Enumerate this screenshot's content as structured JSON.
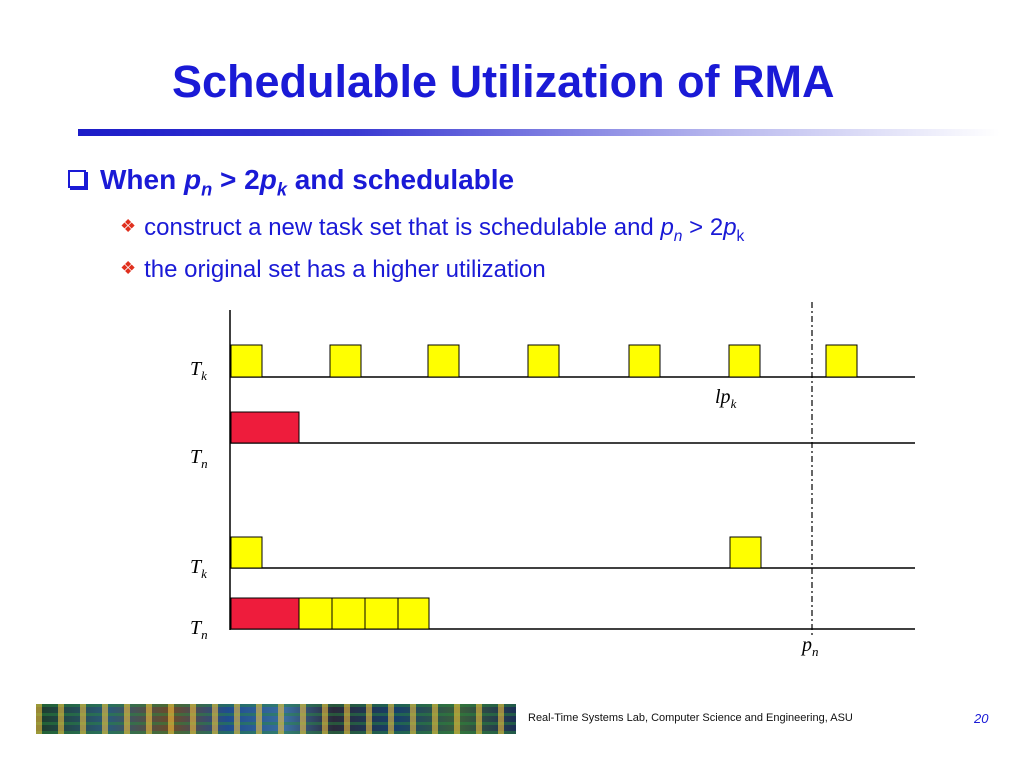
{
  "slide": {
    "title": "Schedulable Utilization of RMA",
    "bullet1": {
      "prefix": "When ",
      "p": "p",
      "n": "n",
      "mid": " > 2",
      "p2": "p",
      "k": "k",
      "suffix": "  and schedulable"
    },
    "sub_bullets": [
      {
        "text": "construct a new task set that is schedulable and ",
        "p": "p",
        "n": "n",
        "mid": " > 2",
        "p2": "p",
        "k": "k"
      },
      {
        "text": "the original set has a higher utilization"
      }
    ],
    "footer": "Real-Time Systems Lab, Computer Science and Engineering, ASU",
    "page_number": "20"
  },
  "diagram": {
    "rows": [
      {
        "label_main": "T",
        "label_sub": "k"
      },
      {
        "label_main": "T",
        "label_sub": "n"
      },
      {
        "label_main": "T",
        "label_sub": "k"
      },
      {
        "label_main": "T",
        "label_sub": "n"
      }
    ],
    "marker_lpk": {
      "main": "lp",
      "sub": "k"
    },
    "marker_pn": {
      "main": "p",
      "sub": "n"
    },
    "colors": {
      "yellow_block": "#ffff00",
      "red_block": "#ee1c3c",
      "title": "#1a1ad6",
      "diamond": "#e0301e"
    }
  }
}
